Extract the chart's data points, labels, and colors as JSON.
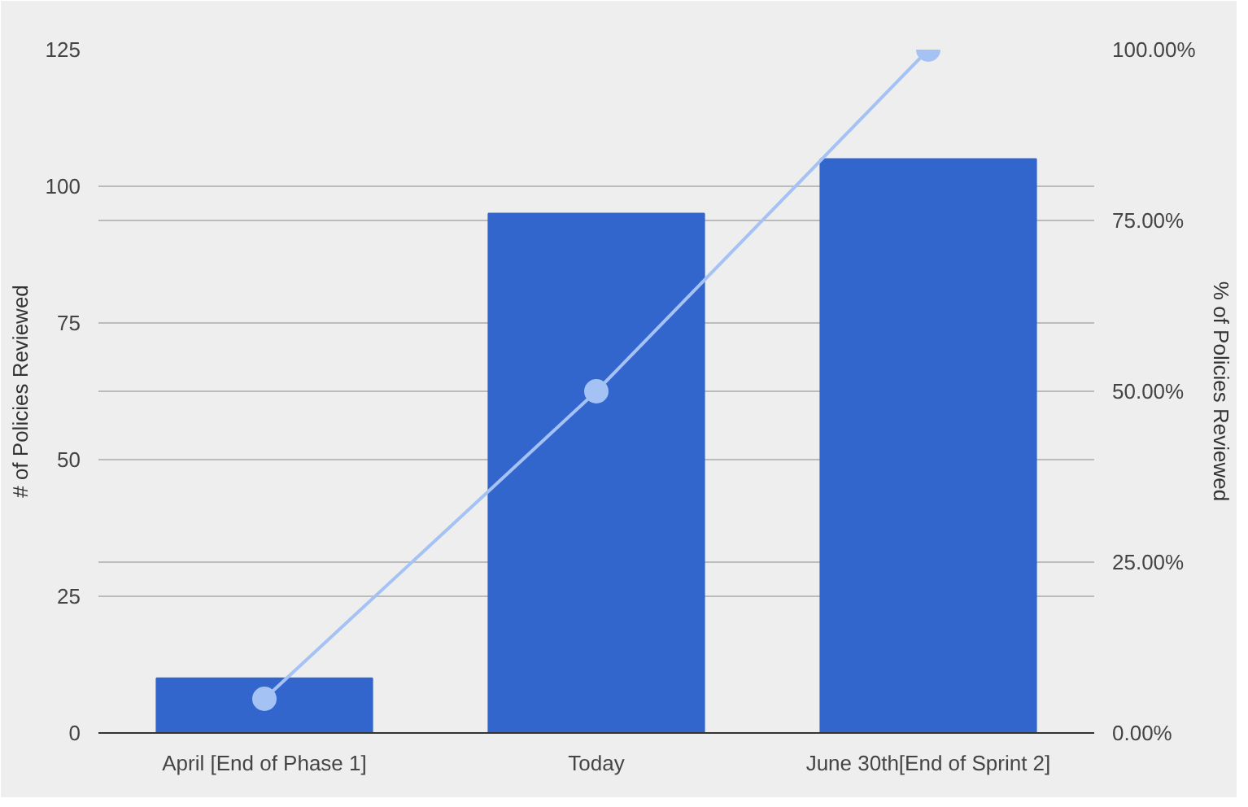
{
  "chart_data": {
    "type": "bar",
    "categories": [
      "April [End of Phase 1]",
      "Today",
      "June 30th[End of Sprint 2]"
    ],
    "series": [
      {
        "color": "#3366cc",
        "values": [
          10,
          95,
          105
        ]
      },
      {
        "type": "line",
        "axis": "y2",
        "color": "#a4c2f4",
        "values": [
          5,
          50,
          100
        ],
        "marker": "circle"
      }
    ],
    "ylabel": "# of Policies Reviewed",
    "y2label": "% of Policies Reviewed",
    "ylim": [
      0,
      125
    ],
    "yticks": [
      0,
      25,
      50,
      75,
      100,
      125
    ],
    "y2lim": [
      0,
      100
    ],
    "y2ticks": [
      {
        "value": 0,
        "label": "0.00%"
      },
      {
        "value": 25,
        "label": "25.00%"
      },
      {
        "value": 50,
        "label": "50.00%"
      },
      {
        "value": 75,
        "label": "75.00%"
      },
      {
        "value": 100,
        "label": "100.00%"
      }
    ],
    "grid": true
  }
}
